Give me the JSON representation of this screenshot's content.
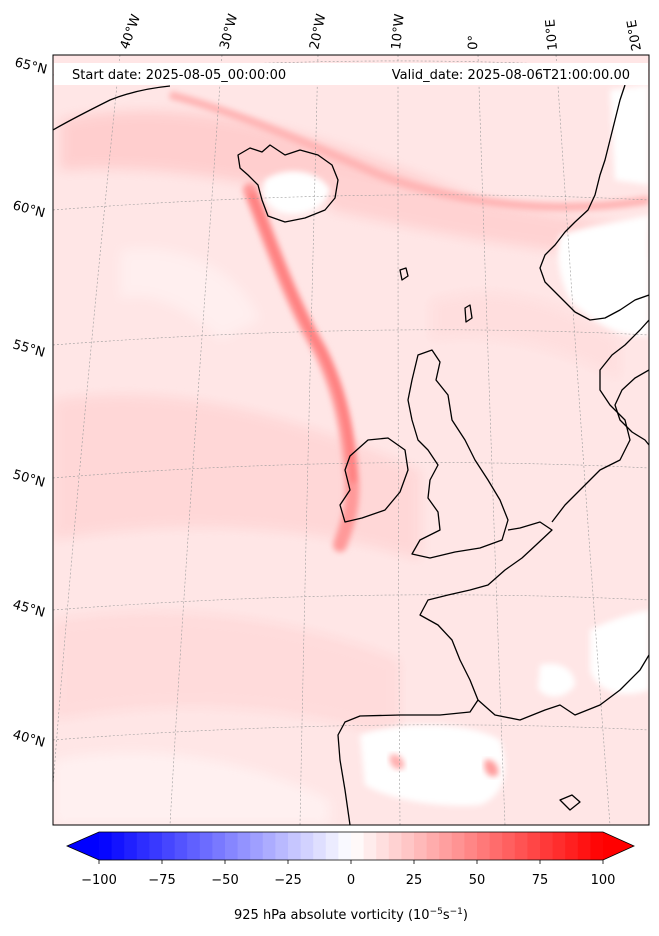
{
  "header": {
    "start_date": "Start date: 2025-08-05_00:00:00",
    "valid_date": "Valid_date: 2025-08-06T21:00:00.00"
  },
  "longitude_labels": [
    "40°W",
    "30°W",
    "20°W",
    "10°W",
    "0°",
    "10°E",
    "20°E"
  ],
  "latitude_labels": [
    "65°N",
    "60°N",
    "55°N",
    "50°N",
    "45°N",
    "40°N"
  ],
  "colorbar": {
    "ticks": [
      "−100",
      "−75",
      "−50",
      "−25",
      "0",
      "25",
      "50",
      "75",
      "100"
    ],
    "label_main": "925 hPa absolute vorticity (10",
    "label_sup1": "−5",
    "label_mid": "s",
    "label_sup2": "−1",
    "label_end": ")",
    "range": [
      -100,
      100
    ],
    "colormap": "bwr",
    "colors": {
      "min": "#0000ff",
      "mid": "#ffffff",
      "max": "#ff0000"
    }
  },
  "map": {
    "land_outline_color": "#000000",
    "field_background": "#ffe5e5"
  }
}
